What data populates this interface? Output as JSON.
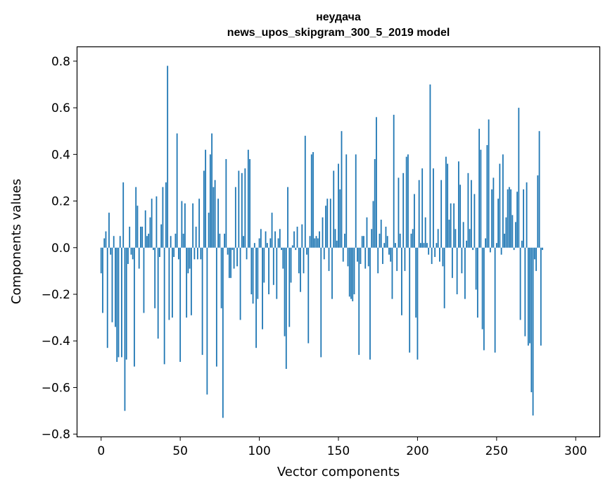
{
  "chart_data": {
    "type": "bar",
    "title": "неудача",
    "subtitle": "news_upos_skipgram_300_5_2019 model",
    "xlabel": "Vector components",
    "ylabel": "Components values",
    "xlim": [
      -15,
      315
    ],
    "ylim": [
      -0.81,
      0.86
    ],
    "xticks": [
      0,
      50,
      100,
      150,
      200,
      250,
      300
    ],
    "yticks": [
      -0.8,
      -0.6,
      -0.4,
      -0.2,
      0.0,
      0.2,
      0.4,
      0.6,
      0.8
    ],
    "ytick_labels": [
      "−0.8",
      "−0.6",
      "−0.4",
      "−0.2",
      "0.0",
      "0.2",
      "0.4",
      "0.6",
      "0.8"
    ],
    "xtick_labels": [
      "0",
      "50",
      "100",
      "150",
      "200",
      "250",
      "300"
    ],
    "grid": false,
    "bar_color": "#1f77b4",
    "values": [
      -0.11,
      -0.28,
      0.04,
      0.07,
      -0.43,
      0.15,
      -0.03,
      -0.32,
      0.05,
      -0.34,
      -0.49,
      -0.47,
      0.05,
      -0.47,
      0.28,
      -0.7,
      -0.48,
      -0.07,
      0.09,
      -0.03,
      -0.05,
      -0.51,
      0.26,
      0.18,
      -0.09,
      0.09,
      0.09,
      -0.28,
      0.16,
      0.05,
      0.06,
      0.13,
      0.21,
      -0.01,
      -0.26,
      0.22,
      -0.39,
      -0.04,
      0.1,
      0.26,
      -0.5,
      0.28,
      0.78,
      -0.31,
      0.05,
      -0.3,
      -0.04,
      0.06,
      0.49,
      -0.05,
      -0.49,
      0.2,
      0.06,
      0.19,
      -0.3,
      -0.11,
      -0.09,
      -0.29,
      0.19,
      -0.05,
      0.09,
      -0.05,
      0.21,
      -0.05,
      -0.46,
      0.33,
      0.42,
      -0.63,
      0.15,
      0.4,
      0.49,
      0.26,
      0.29,
      -0.51,
      0.21,
      0.06,
      -0.26,
      -0.73,
      0.06,
      0.38,
      -0.03,
      -0.13,
      -0.13,
      -0.01,
      -0.09,
      0.26,
      -0.08,
      0.33,
      -0.31,
      0.32,
      0.05,
      0.34,
      -0.05,
      0.42,
      0.38,
      -0.2,
      -0.24,
      0.02,
      -0.43,
      -0.22,
      0.04,
      0.08,
      -0.35,
      -0.15,
      0.07,
      0.02,
      -0.2,
      0.04,
      0.15,
      -0.16,
      0.07,
      -0.22,
      0.04,
      0.08,
      -0.01,
      -0.09,
      -0.38,
      -0.52,
      0.26,
      -0.34,
      -0.15,
      0.01,
      0.07,
      -0.01,
      0.09,
      -0.11,
      -0.19,
      0.1,
      -0.11,
      0.48,
      -0.03,
      -0.41,
      0.05,
      0.4,
      0.41,
      0.04,
      0.05,
      0.04,
      0.07,
      -0.47,
      0.13,
      -0.05,
      0.18,
      0.21,
      -0.1,
      0.21,
      -0.22,
      0.33,
      0.08,
      0.03,
      0.36,
      0.25,
      0.5,
      -0.06,
      0.06,
      0.4,
      -0.08,
      -0.21,
      -0.22,
      -0.23,
      -0.2,
      0.4,
      -0.06,
      -0.46,
      -0.07,
      0.05,
      0.05,
      -0.09,
      0.13,
      -0.08,
      -0.48,
      0.08,
      0.2,
      0.38,
      0.56,
      -0.11,
      0.06,
      0.12,
      -0.07,
      0.02,
      0.09,
      0.05,
      -0.03,
      -0.06,
      -0.22,
      0.57,
      0.02,
      -0.1,
      0.3,
      0.06,
      -0.29,
      0.32,
      -0.1,
      0.39,
      0.4,
      -0.45,
      0.06,
      0.08,
      0.23,
      -0.3,
      -0.48,
      0.29,
      0.02,
      0.34,
      0.02,
      0.13,
      0.02,
      -0.03,
      0.7,
      -0.07,
      0.34,
      -0.04,
      0.02,
      0.08,
      -0.06,
      0.29,
      -0.08,
      -0.26,
      0.39,
      0.36,
      0.12,
      0.19,
      -0.13,
      0.19,
      0.08,
      -0.2,
      0.37,
      0.27,
      -0.11,
      0.11,
      -0.22,
      0.03,
      0.32,
      0.08,
      0.29,
      -0.01,
      0.23,
      -0.18,
      -0.3,
      0.51,
      0.42,
      -0.35,
      -0.44,
      0.04,
      0.44,
      0.55,
      -0.02,
      0.25,
      0.3,
      -0.45,
      0.02,
      0.21,
      0.36,
      -0.03,
      0.4,
      0.06,
      0.13,
      0.25,
      0.26,
      0.25,
      0.14,
      -0.01,
      0.11,
      0.24,
      0.6,
      -0.31,
      0.03,
      0.25,
      -0.38,
      0.28,
      -0.42,
      -0.41,
      -0.62,
      -0.72,
      -0.05,
      -0.1,
      0.31,
      0.5,
      -0.42,
      -0.01
    ]
  }
}
